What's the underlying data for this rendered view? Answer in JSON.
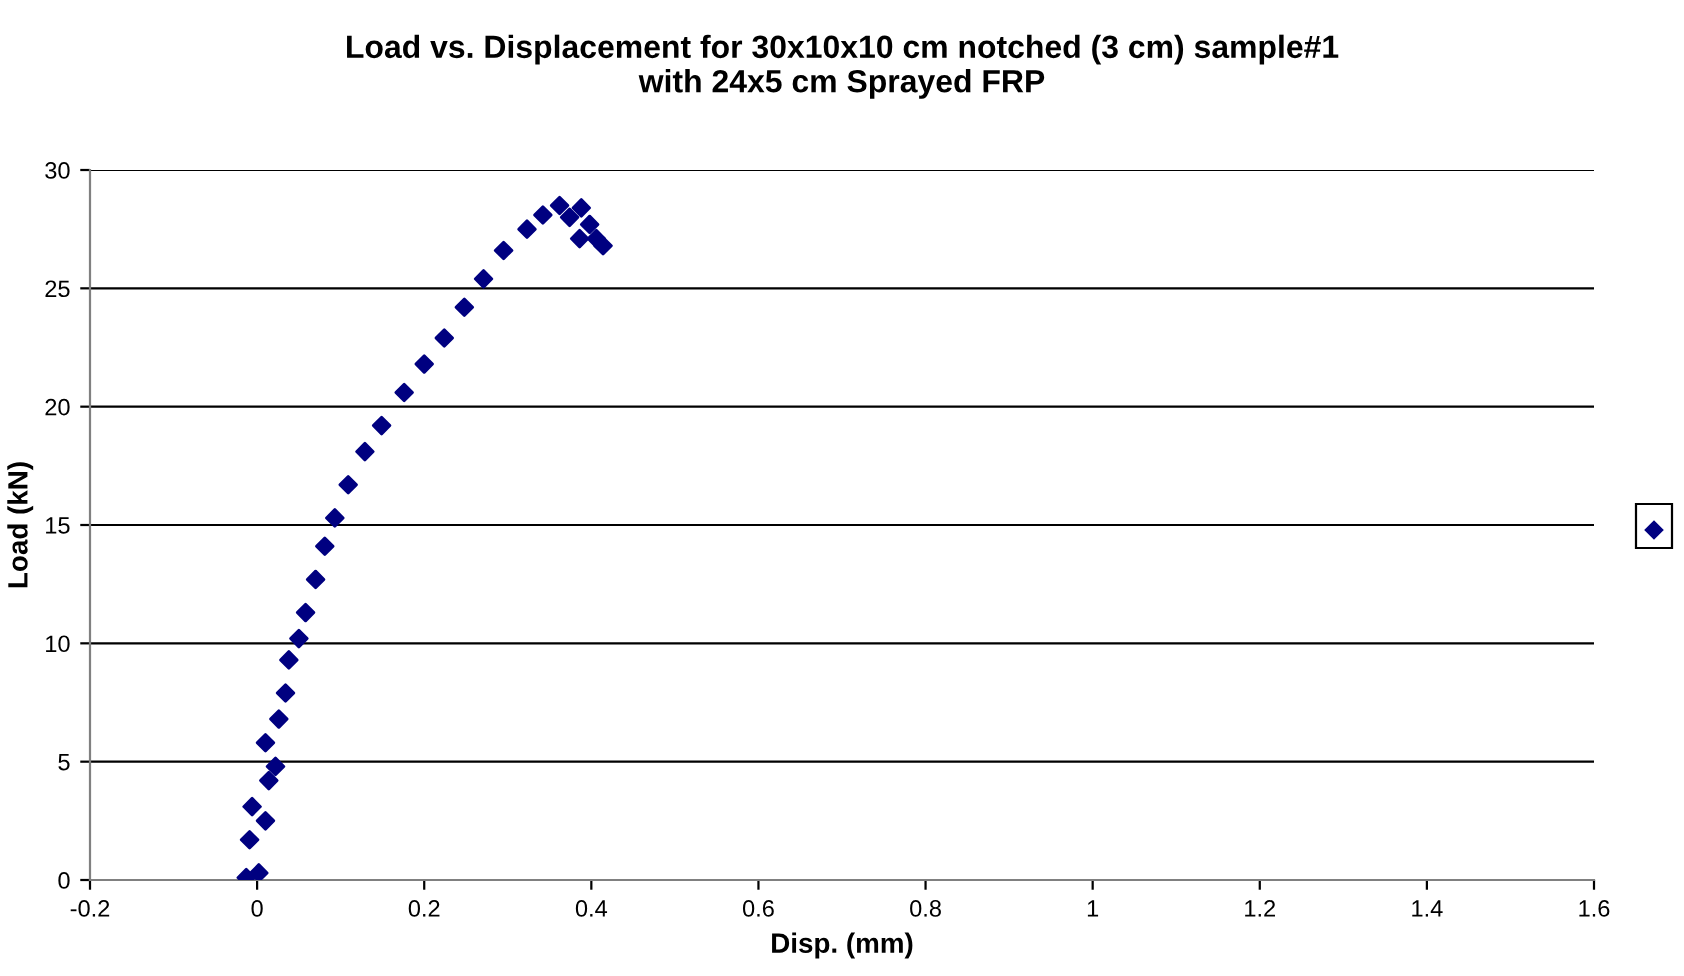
{
  "chart_data": {
    "type": "scatter",
    "title": "Load vs. Displacement for 30x10x10 cm notched (3 cm) sample#1\nwith 24x5 cm Sprayed FRP",
    "xlabel": "Disp. (mm)",
    "ylabel": "Load (kN)",
    "series": [
      {
        "color": "#000080",
        "x": [
          -0.013,
          -0.009,
          -0.006,
          0.002,
          0.01,
          0.014,
          0.01,
          0.022,
          0.026,
          0.034,
          0.038,
          0.05,
          0.058,
          0.07,
          0.081,
          0.093,
          0.109,
          0.129,
          0.149,
          0.176,
          0.2,
          0.224,
          0.248,
          0.271,
          0.295,
          0.323,
          0.342,
          0.362,
          0.374,
          0.388,
          0.386,
          0.398,
          0.406,
          0.414
        ],
        "values": [
          0.1,
          1.7,
          3.1,
          0.3,
          2.5,
          4.2,
          5.8,
          4.8,
          6.8,
          7.9,
          9.3,
          10.2,
          11.3,
          12.7,
          14.1,
          15.3,
          16.7,
          18.1,
          19.2,
          20.6,
          21.8,
          22.9,
          24.2,
          25.4,
          26.6,
          27.5,
          28.1,
          28.5,
          28.0,
          28.4,
          27.1,
          27.7,
          27.1,
          26.8
        ]
      }
    ],
    "xlim": [
      -0.2,
      1.6
    ],
    "xticks": [
      -0.2,
      0,
      0.2,
      0.4,
      0.6,
      0.8,
      1,
      1.2,
      1.4,
      1.6
    ],
    "ylim": [
      0,
      30
    ],
    "yticks": [
      0,
      5,
      10,
      15,
      20,
      25,
      30
    ],
    "grid": "y",
    "marker": "diamond"
  }
}
